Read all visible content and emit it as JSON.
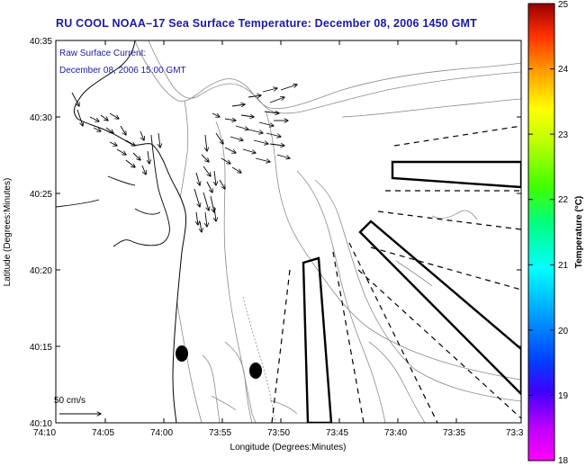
{
  "title": "RU COOL  NOAA–17  Sea Surface Temperature:  December 08, 2006 1450 GMT",
  "annotation": {
    "line1": "Raw Surface Current:",
    "line2": "December 08, 2006 15:00 GMT"
  },
  "scale": {
    "label": "50 cm/s"
  },
  "axes": {
    "xlabel": "Longitude (Degrees:Minutes)",
    "ylabel": "Latitude (Degrees:Minutes)",
    "xticks": [
      "74:10",
      "74:05",
      "74:00",
      "73:55",
      "73:50",
      "73:45",
      "73:40",
      "73:35",
      "73:3"
    ],
    "yticks": [
      "40:35",
      "40:30",
      "40:25",
      "40:20",
      "40:15",
      "40:10"
    ]
  },
  "colorbar": {
    "label": "Temperature (°C)",
    "ticks": [
      "25",
      "24",
      "23",
      "22",
      "21",
      "20",
      "19",
      "18"
    ],
    "min": 18,
    "max": 25
  },
  "colors": {
    "title": "#1a1aa6",
    "annotation": "#1a1aa6",
    "land": "#ffffff",
    "contour": "#8a8a8a"
  }
}
